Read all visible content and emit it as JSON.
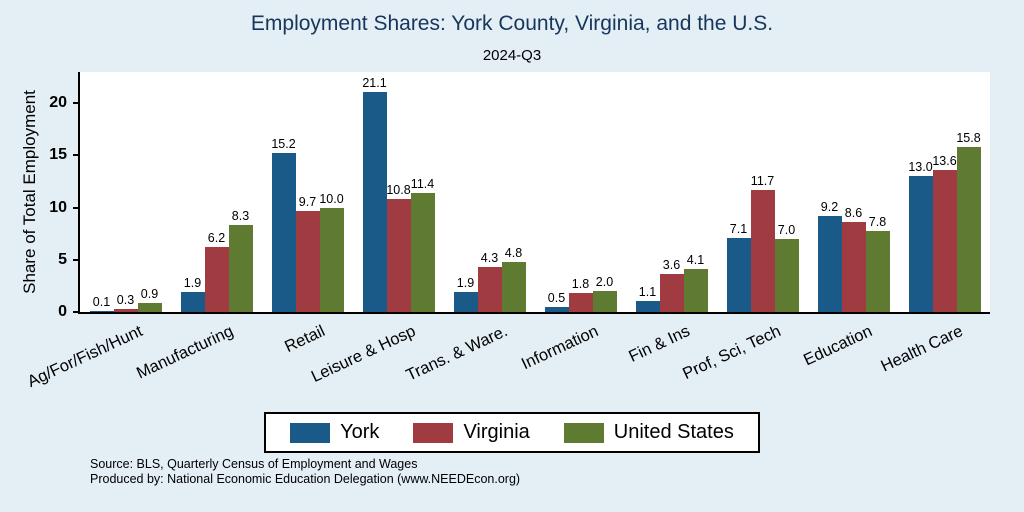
{
  "colors": {
    "background": "#e3eef5",
    "plot_background": "#ffffff",
    "title": "#16365c",
    "york": "#1a5a88",
    "virginia": "#a03c41",
    "us": "#5e7b31"
  },
  "source_line1": "Source: BLS, Quarterly Census of Employment and Wages",
  "source_line2": "Produced by: National Economic Education Delegation (www.NEEDEcon.org)",
  "chart_data": {
    "type": "bar",
    "title": "Employment Shares: York County, Virginia, and the U.S.",
    "subtitle": "2024-Q3",
    "ylabel": "Share of Total Employment",
    "xlabel": "",
    "categories": [
      "Ag/For/Fish/Hunt",
      "Manufacturing",
      "Retail",
      "Leisure & Hosp",
      "Trans. & Ware.",
      "Information",
      "Fin & Ins",
      "Prof, Sci, Tech",
      "Education",
      "Health Care"
    ],
    "series": [
      {
        "name": "York",
        "color_key": "york",
        "values": [
          0.1,
          1.9,
          15.2,
          21.1,
          1.9,
          0.5,
          1.1,
          7.1,
          9.2,
          13.0
        ]
      },
      {
        "name": "Virginia",
        "color_key": "virginia",
        "values": [
          0.3,
          6.2,
          9.7,
          10.8,
          4.3,
          1.8,
          3.6,
          11.7,
          8.6,
          13.6
        ]
      },
      {
        "name": "United States",
        "color_key": "us",
        "values": [
          0.9,
          8.3,
          10.0,
          11.4,
          4.8,
          2.0,
          4.1,
          7.0,
          7.8,
          15.8
        ]
      }
    ],
    "yticks": [
      0,
      5,
      10,
      15,
      20
    ],
    "ylim": [
      0,
      23
    ],
    "grid": false,
    "legend_position": "bottom"
  }
}
